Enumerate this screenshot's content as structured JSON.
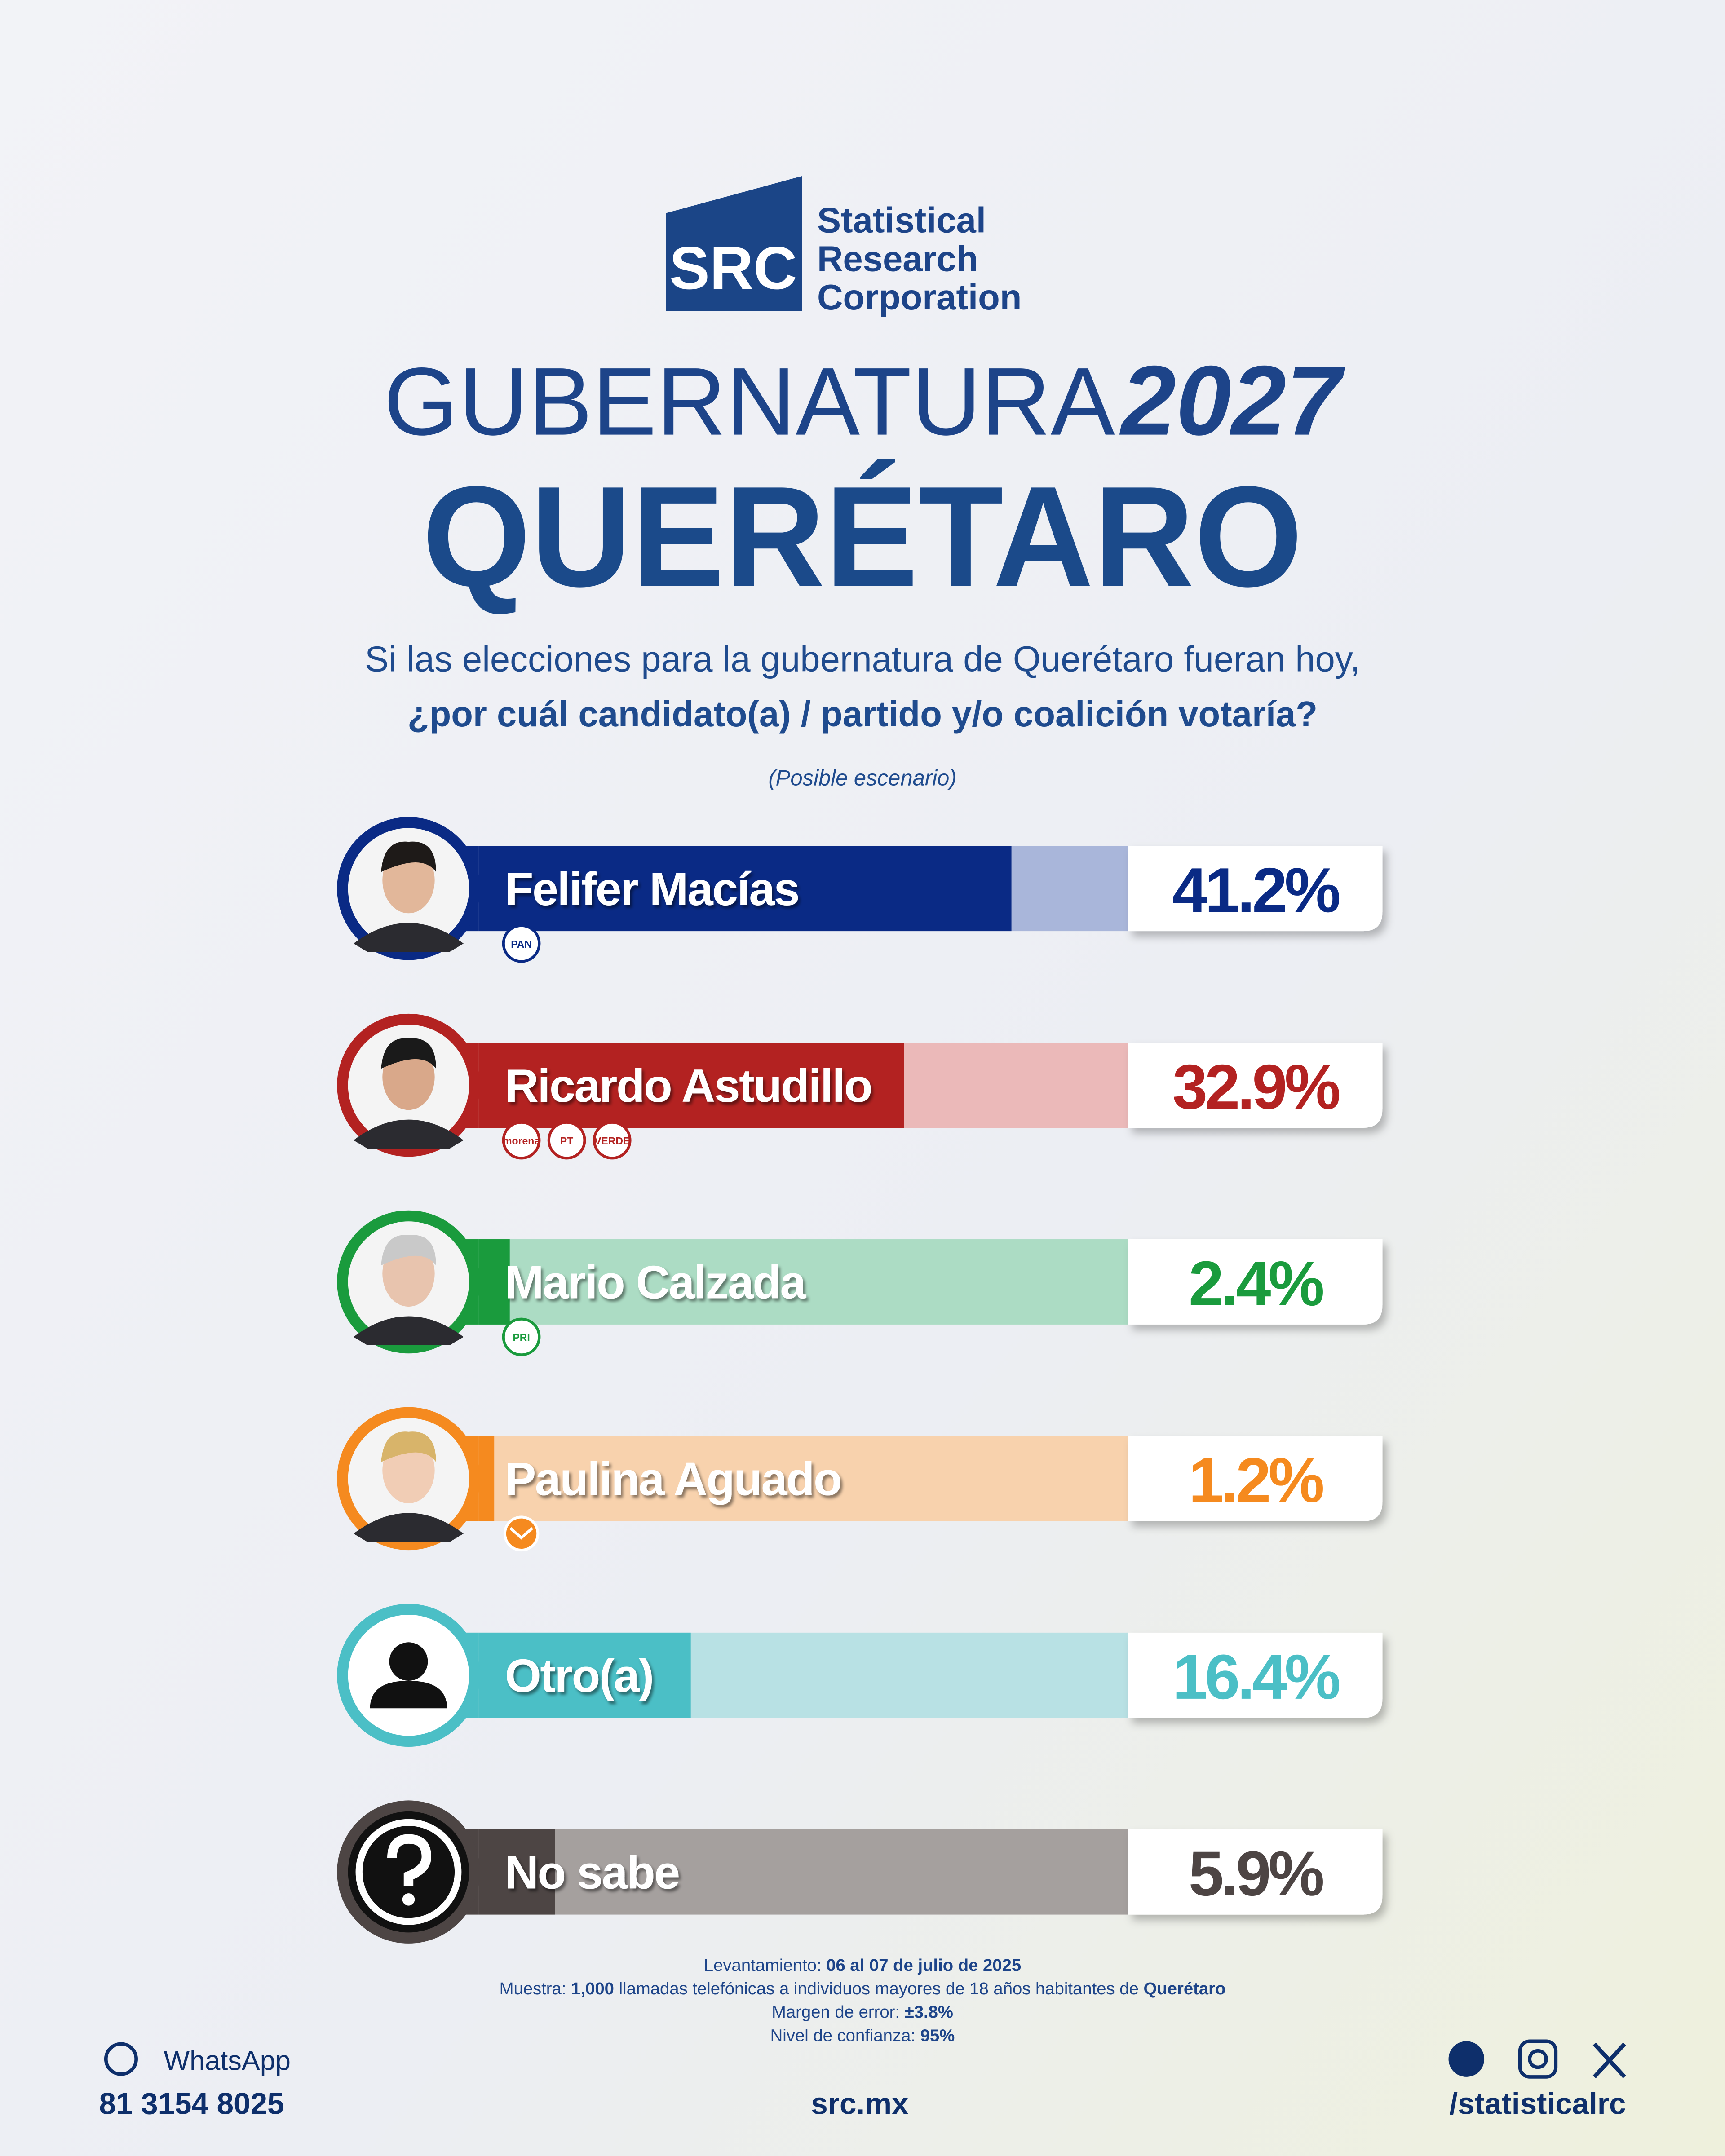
{
  "logo": {
    "mark": "SRC",
    "name": [
      "Statistical",
      "Research",
      "Corporation"
    ]
  },
  "chart_data": {
    "type": "bar",
    "title": "GUBERNATURA",
    "title_year": "2027",
    "subtitle": "QUERÉTARO",
    "question": [
      "Si las elecciones para la gubernatura de Querétaro fueran hoy,",
      "¿por cuál candidato(a) / partido y/o coalición votaría?"
    ],
    "note": "(Posible escenario)",
    "categories": [
      "Felifer Macías",
      "Ricardo Astudillo",
      "Mario Calzada",
      "Paulina Aguado",
      "Otro(a)",
      "No sabe"
    ],
    "values": [
      41.2,
      32.9,
      2.4,
      1.2,
      16.4,
      5.9
    ],
    "value_labels": [
      "41.2%",
      "32.9%",
      "2.4%",
      "1.2%",
      "16.4%",
      "5.9%"
    ],
    "colors": [
      "#0a2a85",
      "#b32221",
      "#1a9b3d",
      "#f58a1f",
      "#4bbfc6",
      "#4d4544"
    ],
    "track_colors": [
      "#a9b6da",
      "#ebb9b9",
      "#acdcc4",
      "#f8d2ad",
      "#b8e1e4",
      "#a5a09e"
    ],
    "badges": [
      [
        "PAN"
      ],
      [
        "morena",
        "PT",
        "VERDE"
      ],
      [
        "PRI"
      ],
      [],
      [],
      []
    ]
  },
  "methodology": [
    [
      "Levantamiento:",
      "06 al 07 de julio de 2025"
    ],
    [
      "Muestra:",
      "1,000",
      "llamadas telefónicas a individuos mayores de 18 años habitantes de",
      "Querétaro"
    ],
    [
      "Margen de error:",
      "±3.8%"
    ],
    [
      "Nivel de confianza:",
      "95%"
    ]
  ],
  "footer": {
    "whatsapp_label": "WhatsApp",
    "phone": "81 3154 8025",
    "website": "src.mx",
    "social": "/statisticalrc"
  }
}
